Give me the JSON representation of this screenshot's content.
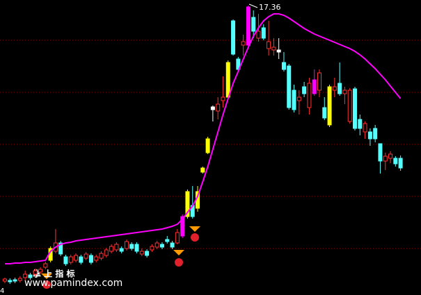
{
  "chart_data": {
    "type": "candlestick",
    "open": [
      1.48,
      1.52,
      1.56,
      1.52,
      1.68,
      1.84,
      1.88,
      2.0,
      2.28,
      2.68,
      3.2,
      3.68,
      2.88,
      2.56,
      2.68,
      2.88,
      2.8,
      2.96,
      2.68,
      2.8,
      2.96,
      3.2,
      3.28,
      3.36,
      3.36,
      3.6,
      3.6,
      3.04,
      3.2,
      3.28,
      3.44,
      3.6,
      3.88,
      3.68,
      3.68,
      4.08,
      5.2,
      5.84,
      5.68,
      7.76,
      8.88,
      11.36,
      11.28,
      11.88,
      12.08,
      16.48,
      14.28,
      15.08,
      15.08,
      16.68,
      15.48,
      16.08,
      14.88,
      14.8,
      14.68,
      14.08,
      13.88,
      12.48,
      11.88,
      12.68,
      11.48,
      13.08,
      12.48,
      11.48,
      12.68,
      12.48,
      12.88,
      12.28,
      10.68,
      12.56,
      10.8,
      10.08,
      10.08,
      10.28,
      9.4,
      8.4,
      8.56,
      8.56,
      8.56
    ],
    "close": [
      1.6,
      1.44,
      1.48,
      1.64,
      1.88,
      1.68,
      2.08,
      2.16,
      2.48,
      3.36,
      3.68,
      3.04,
      2.48,
      2.88,
      2.96,
      2.56,
      3.04,
      2.56,
      2.88,
      3.08,
      3.28,
      3.48,
      3.6,
      3.2,
      3.76,
      3.36,
      3.2,
      3.2,
      2.96,
      3.48,
      3.68,
      3.44,
      3.76,
      3.44,
      4.28,
      5.2,
      6.64,
      5.2,
      6.64,
      8.0,
      9.68,
      11.52,
      11.68,
      12.08,
      14.08,
      14.56,
      13.68,
      15.28,
      17.28,
      15.88,
      15.88,
      15.48,
      15.28,
      14.96,
      14.8,
      13.68,
      11.48,
      11.36,
      12.08,
      12.28,
      12.88,
      12.28,
      13.48,
      10.88,
      10.48,
      12.68,
      12.28,
      12.48,
      12.48,
      10.28,
      10.28,
      10.56,
      9.68,
      9.68,
      8.4,
      8.68,
      8.8,
      8.24,
      8.0
    ],
    "high": [
      1.68,
      1.64,
      1.68,
      1.76,
      2.08,
      1.96,
      2.2,
      2.28,
      2.6,
      3.48,
      4.48,
      3.8,
      3.0,
      3.0,
      3.08,
      3.0,
      3.16,
      3.08,
      3.0,
      3.2,
      3.4,
      3.6,
      3.72,
      3.48,
      3.88,
      3.72,
      3.72,
      3.36,
      3.32,
      3.6,
      3.8,
      3.72,
      4.08,
      3.8,
      4.48,
      5.32,
      6.76,
      6.96,
      6.96,
      8.08,
      9.8,
      11.6,
      12.08,
      13.28,
      14.2,
      16.56,
      14.4,
      15.68,
      17.36,
      17.08,
      16.88,
      16.28,
      16.48,
      15.48,
      15.48,
      14.68,
      14.0,
      12.8,
      12.48,
      12.96,
      13.2,
      13.68,
      13.68,
      12.08,
      12.8,
      13.2,
      14.08,
      12.68,
      12.6,
      12.68,
      11.08,
      10.68,
      10.28,
      10.48,
      9.28,
      8.88,
      8.96,
      8.68,
      8.72
    ],
    "low": [
      1.36,
      1.32,
      1.36,
      1.4,
      1.52,
      1.56,
      1.76,
      1.88,
      2.16,
      2.56,
      3.08,
      2.92,
      2.36,
      2.44,
      2.56,
      2.44,
      2.68,
      2.44,
      2.56,
      2.68,
      2.84,
      3.08,
      3.16,
      3.08,
      3.24,
      3.24,
      3.08,
      2.92,
      2.84,
      3.16,
      3.32,
      3.32,
      3.64,
      3.32,
      3.6,
      3.96,
      5.08,
      5.08,
      5.48,
      7.68,
      8.8,
      10.68,
      10.8,
      11.48,
      11.96,
      14.48,
      13.56,
      14.48,
      14.88,
      15.48,
      15.28,
      15.36,
      14.48,
      14.48,
      14.28,
      13.56,
      11.36,
      11.2,
      11.08,
      12.08,
      11.08,
      12.16,
      12.08,
      10.76,
      10.36,
      12.08,
      12.16,
      11.68,
      10.56,
      10.16,
      9.88,
      9.68,
      9.28,
      9.48,
      7.68,
      7.88,
      8.28,
      8.08,
      7.84
    ],
    "colors": [
      "#ff3232",
      "#54ffff",
      "#54ffff",
      "#ff3232",
      "#ff3232",
      "#54ffff",
      "#ff3232",
      "#ff3232",
      "#ff3232",
      "#ffff00",
      "#ff3232",
      "#54ffff",
      "#54ffff",
      "#ff3232",
      "#ff3232",
      "#54ffff",
      "#ff3232",
      "#54ffff",
      "#ff3232",
      "#ff3232",
      "#ff3232",
      "#ff3232",
      "#ff3232",
      "#54ffff",
      "#ff3232",
      "#54ffff",
      "#54ffff",
      "#ff3232",
      "#54ffff",
      "#ff3232",
      "#ff3232",
      "#54ffff",
      "#54ffff",
      "#54ffff",
      "#ff3232",
      "#ff00ff",
      "#ffff00",
      "#54ffff",
      "#ffff00",
      "#ffff00",
      "#ffff00",
      "#ffffff",
      "#ff3232",
      "#ff3232",
      "#ffff00",
      "#54ffff",
      "#54ffff",
      "#ff3232",
      "#ff00ff",
      "#54ffff",
      "#ff3232",
      "#54ffff",
      "#ff3232",
      "#ff3232",
      "#ffffff",
      "#54ffff",
      "#54ffff",
      "#54ffff",
      "#ff3232",
      "#54ffff",
      "#ff3232",
      "#ff00ff",
      "#ff3232",
      "#54ffff",
      "#ffff00",
      "#ff3232",
      "#54ffff",
      "#ff3232",
      "#ff3232",
      "#54ffff",
      "#54ffff",
      "#ff3232",
      "#54ffff",
      "#54ffff",
      "#54ffff",
      "#ff3232",
      "#ff3232",
      "#54ffff",
      "#54ffff"
    ],
    "ma": {
      "color": "#ff00ff",
      "values": [
        2.48,
        2.48,
        2.52,
        2.52,
        2.56,
        2.56,
        2.6,
        2.64,
        2.68,
        3.2,
        3.44,
        3.6,
        3.68,
        3.72,
        3.8,
        3.84,
        3.88,
        3.92,
        3.96,
        4.0,
        4.04,
        4.08,
        4.12,
        4.16,
        4.2,
        4.24,
        4.28,
        4.32,
        4.36,
        4.4,
        4.44,
        4.48,
        4.56,
        4.64,
        4.76,
        5.04,
        5.44,
        5.8,
        6.36,
        7.2,
        8.08,
        9.08,
        10.08,
        11.08,
        12.0,
        12.88,
        13.56,
        14.28,
        14.96,
        15.6,
        16.08,
        16.48,
        16.72,
        16.88,
        16.88,
        16.8,
        16.64,
        16.44,
        16.24,
        16.04,
        15.88,
        15.72,
        15.6,
        15.48,
        15.36,
        15.24,
        15.12,
        15.0,
        14.88,
        14.72,
        14.52,
        14.28,
        14.0,
        13.72,
        13.4,
        13.08,
        12.72,
        12.36,
        12.0
      ]
    },
    "ylim": [
      0.68,
      17.68
    ],
    "gridlines": [
      15.36,
      12.36,
      9.36,
      6.36,
      3.36
    ],
    "annotation": "17.36"
  },
  "brand": "掌 上 指 标",
  "watermark": "www.pamindex.com",
  "corner_label": "4"
}
